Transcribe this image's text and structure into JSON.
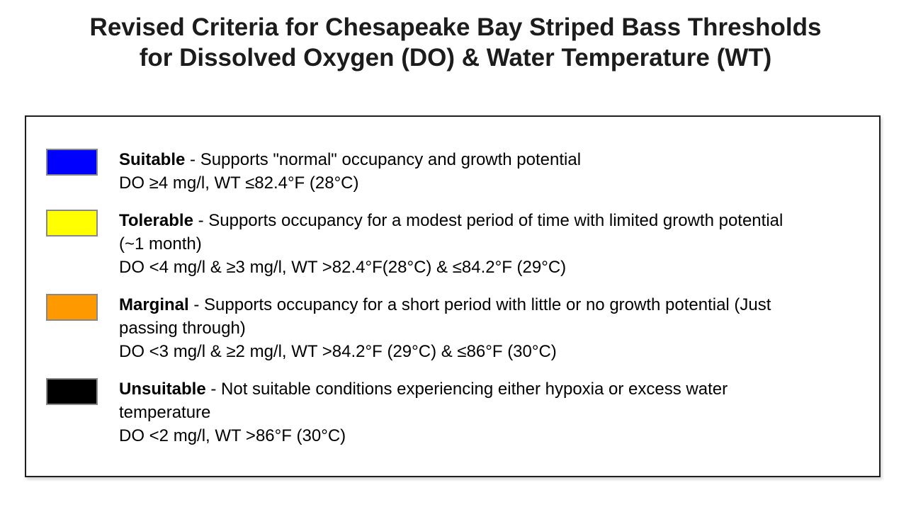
{
  "title": {
    "line1": "Revised Criteria for Chesapeake Bay Striped Bass Thresholds",
    "line2": "for Dissolved Oxygen (DO) & Water Temperature (WT)"
  },
  "legend": {
    "items": [
      {
        "label": "Suitable",
        "swatch_color": "#0000ff",
        "desc_line1": " - Supports \"normal\" occupancy and growth potential",
        "desc_line2": "",
        "criteria": "DO ≥4 mg/l, WT ≤82.4°F (28°C)"
      },
      {
        "label": "Tolerable",
        "swatch_color": "#ffff00",
        "desc_line1": " - Supports occupancy for a modest period of time with limited growth potential",
        "desc_line2": "(~1 month)",
        "criteria": "DO <4 mg/l & ≥3 mg/l, WT >82.4°F(28°C) & ≤84.2°F (29°C)"
      },
      {
        "label": "Marginal",
        "swatch_color": "#ff9900",
        "desc_line1": " - Supports occupancy for a short period with little or no growth potential (Just",
        "desc_line2": "passing through)",
        "criteria": "DO <3 mg/l & ≥2 mg/l, WT >84.2°F (29°C) & ≤86°F (30°C)"
      },
      {
        "label": "Unsuitable",
        "swatch_color": "#000000",
        "desc_line1": " - Not suitable conditions experiencing either hypoxia or excess water",
        "desc_line2": "temperature",
        "criteria": "DO <2 mg/l, WT >86°F (30°C)"
      }
    ]
  }
}
